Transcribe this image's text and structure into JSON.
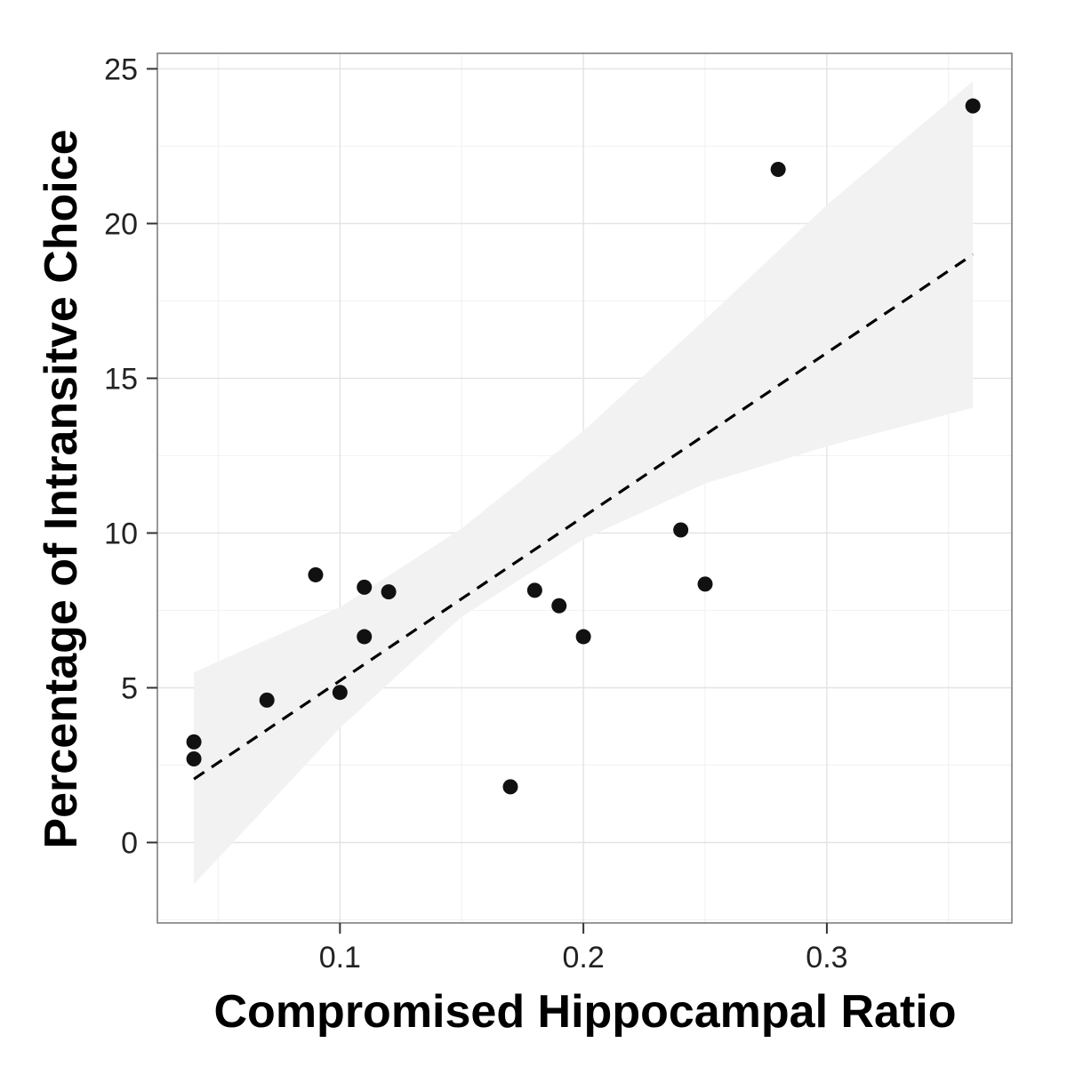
{
  "chart_data": {
    "type": "scatter",
    "xlabel": "Compromised Hippocampal Ratio",
    "ylabel": "Percentage of Intransitve Choice",
    "xlim": [
      0.025,
      0.376
    ],
    "ylim": [
      -2.6,
      25.5
    ],
    "x_ticks": [
      0.1,
      0.2,
      0.3
    ],
    "x_tick_labels": [
      "0.1",
      "0.2",
      "0.3"
    ],
    "y_ticks": [
      0,
      5,
      10,
      15,
      20,
      25
    ],
    "y_tick_labels": [
      "0",
      "5",
      "10",
      "15",
      "20",
      "25"
    ],
    "grid": true,
    "points": [
      {
        "x": 0.04,
        "y": 3.25
      },
      {
        "x": 0.04,
        "y": 2.7
      },
      {
        "x": 0.07,
        "y": 4.6
      },
      {
        "x": 0.09,
        "y": 8.65
      },
      {
        "x": 0.1,
        "y": 4.85
      },
      {
        "x": 0.11,
        "y": 8.25
      },
      {
        "x": 0.11,
        "y": 6.65
      },
      {
        "x": 0.12,
        "y": 8.1
      },
      {
        "x": 0.17,
        "y": 1.8
      },
      {
        "x": 0.18,
        "y": 8.15
      },
      {
        "x": 0.19,
        "y": 7.65
      },
      {
        "x": 0.2,
        "y": 6.65
      },
      {
        "x": 0.24,
        "y": 10.1
      },
      {
        "x": 0.25,
        "y": 8.35
      },
      {
        "x": 0.28,
        "y": 21.75
      },
      {
        "x": 0.36,
        "y": 23.8
      }
    ],
    "fit_line": {
      "style": "dashed",
      "x": [
        0.04,
        0.36
      ],
      "y": [
        2.05,
        19.0
      ]
    },
    "confidence_band": {
      "x": [
        0.04,
        0.1,
        0.15,
        0.2,
        0.25,
        0.3,
        0.36
      ],
      "lower": [
        -1.35,
        3.7,
        7.3,
        9.8,
        11.6,
        12.8,
        14.05
      ],
      "upper": [
        5.5,
        7.6,
        10.15,
        13.3,
        16.9,
        20.6,
        24.6
      ]
    },
    "colors": {
      "point": "#111111",
      "line": "#000000",
      "band": "#f2f2f2",
      "grid_major": "#e3e3e3",
      "grid_minor": "#f3f3f3",
      "panel_border": "#777777"
    }
  }
}
